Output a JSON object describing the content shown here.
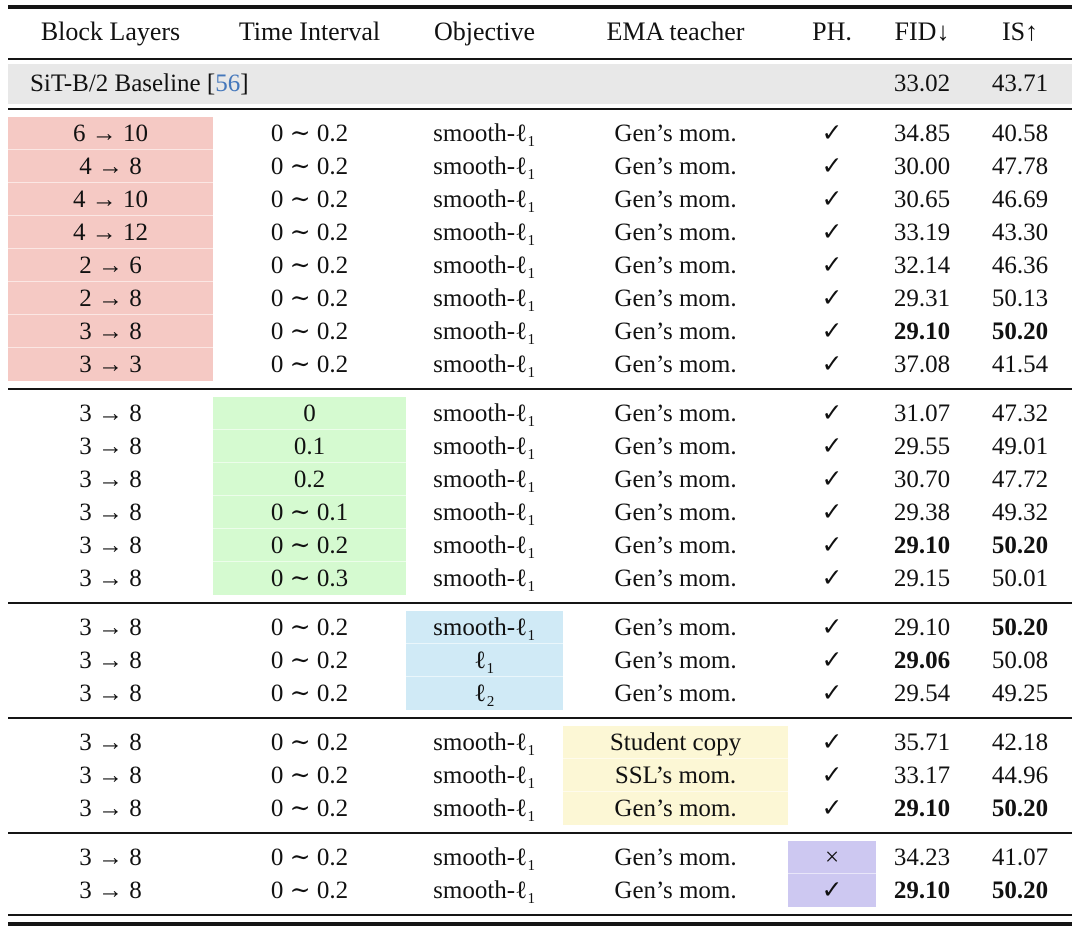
{
  "colors": {
    "red": "#f5c9c4",
    "green": "#d5fad0",
    "blue": "#d0eaf6",
    "yellow": "#fcf7d5",
    "purple": "#cdc8f1",
    "baseline_gray": "#e8e8e8",
    "citation_blue": "#4477bb"
  },
  "header": {
    "columns": [
      "Block Layers",
      "Time Interval",
      "Objective",
      "EMA teacher",
      "PH.",
      "FID↓",
      "IS↑"
    ]
  },
  "baseline": {
    "label": "SiT-B/2 Baseline",
    "cite_open": " [",
    "cite_num": "56",
    "cite_close": "]",
    "fid": "33.02",
    "is": "43.71"
  },
  "sections": [
    {
      "name": "block-layers-ablation",
      "highlight": "block_layers",
      "color": "red",
      "rows": [
        {
          "block_layers": "6 → 10",
          "time_interval": "0 ∼ 0.2",
          "objective": "smooth-ℓ₁",
          "ema": "Gen’s mom.",
          "ph": "✓",
          "fid": "34.85",
          "is": "40.58",
          "fid_bold": false,
          "is_bold": false
        },
        {
          "block_layers": "4 → 8",
          "time_interval": "0 ∼ 0.2",
          "objective": "smooth-ℓ₁",
          "ema": "Gen’s mom.",
          "ph": "✓",
          "fid": "30.00",
          "is": "47.78",
          "fid_bold": false,
          "is_bold": false
        },
        {
          "block_layers": "4 → 10",
          "time_interval": "0 ∼ 0.2",
          "objective": "smooth-ℓ₁",
          "ema": "Gen’s mom.",
          "ph": "✓",
          "fid": "30.65",
          "is": "46.69",
          "fid_bold": false,
          "is_bold": false
        },
        {
          "block_layers": "4 → 12",
          "time_interval": "0 ∼ 0.2",
          "objective": "smooth-ℓ₁",
          "ema": "Gen’s mom.",
          "ph": "✓",
          "fid": "33.19",
          "is": "43.30",
          "fid_bold": false,
          "is_bold": false
        },
        {
          "block_layers": "2 → 6",
          "time_interval": "0 ∼ 0.2",
          "objective": "smooth-ℓ₁",
          "ema": "Gen’s mom.",
          "ph": "✓",
          "fid": "32.14",
          "is": "46.36",
          "fid_bold": false,
          "is_bold": false
        },
        {
          "block_layers": "2 → 8",
          "time_interval": "0 ∼ 0.2",
          "objective": "smooth-ℓ₁",
          "ema": "Gen’s mom.",
          "ph": "✓",
          "fid": "29.31",
          "is": "50.13",
          "fid_bold": false,
          "is_bold": false
        },
        {
          "block_layers": "3 → 8",
          "time_interval": "0 ∼ 0.2",
          "objective": "smooth-ℓ₁",
          "ema": "Gen’s mom.",
          "ph": "✓",
          "fid": "29.10",
          "is": "50.20",
          "fid_bold": true,
          "is_bold": true
        },
        {
          "block_layers": "3 → 3",
          "time_interval": "0 ∼ 0.2",
          "objective": "smooth-ℓ₁",
          "ema": "Gen’s mom.",
          "ph": "✓",
          "fid": "37.08",
          "is": "41.54",
          "fid_bold": false,
          "is_bold": false
        }
      ]
    },
    {
      "name": "time-interval-ablation",
      "highlight": "time_interval",
      "color": "green",
      "rows": [
        {
          "block_layers": "3 → 8",
          "time_interval": "0",
          "objective": "smooth-ℓ₁",
          "ema": "Gen’s mom.",
          "ph": "✓",
          "fid": "31.07",
          "is": "47.32",
          "fid_bold": false,
          "is_bold": false
        },
        {
          "block_layers": "3 → 8",
          "time_interval": "0.1",
          "objective": "smooth-ℓ₁",
          "ema": "Gen’s mom.",
          "ph": "✓",
          "fid": "29.55",
          "is": "49.01",
          "fid_bold": false,
          "is_bold": false
        },
        {
          "block_layers": "3 → 8",
          "time_interval": "0.2",
          "objective": "smooth-ℓ₁",
          "ema": "Gen’s mom.",
          "ph": "✓",
          "fid": "30.70",
          "is": "47.72",
          "fid_bold": false,
          "is_bold": false
        },
        {
          "block_layers": "3 → 8",
          "time_interval": "0 ∼ 0.1",
          "objective": "smooth-ℓ₁",
          "ema": "Gen’s mom.",
          "ph": "✓",
          "fid": "29.38",
          "is": "49.32",
          "fid_bold": false,
          "is_bold": false
        },
        {
          "block_layers": "3 → 8",
          "time_interval": "0 ∼ 0.2",
          "objective": "smooth-ℓ₁",
          "ema": "Gen’s mom.",
          "ph": "✓",
          "fid": "29.10",
          "is": "50.20",
          "fid_bold": true,
          "is_bold": true
        },
        {
          "block_layers": "3 → 8",
          "time_interval": "0 ∼ 0.3",
          "objective": "smooth-ℓ₁",
          "ema": "Gen’s mom.",
          "ph": "✓",
          "fid": "29.15",
          "is": "50.01",
          "fid_bold": false,
          "is_bold": false
        }
      ]
    },
    {
      "name": "objective-ablation",
      "highlight": "objective",
      "color": "blue",
      "rows": [
        {
          "block_layers": "3 → 8",
          "time_interval": "0 ∼ 0.2",
          "objective": "smooth-ℓ₁",
          "ema": "Gen’s mom.",
          "ph": "✓",
          "fid": "29.10",
          "is": "50.20",
          "fid_bold": false,
          "is_bold": true
        },
        {
          "block_layers": "3 → 8",
          "time_interval": "0 ∼ 0.2",
          "objective": "ℓ₁",
          "ema": "Gen’s mom.",
          "ph": "✓",
          "fid": "29.06",
          "is": "50.08",
          "fid_bold": true,
          "is_bold": false
        },
        {
          "block_layers": "3 → 8",
          "time_interval": "0 ∼ 0.2",
          "objective": "ℓ₂",
          "ema": "Gen’s mom.",
          "ph": "✓",
          "fid": "29.54",
          "is": "49.25",
          "fid_bold": false,
          "is_bold": false
        }
      ]
    },
    {
      "name": "ema-teacher-ablation",
      "highlight": "ema",
      "color": "yellow",
      "rows": [
        {
          "block_layers": "3 → 8",
          "time_interval": "0 ∼ 0.2",
          "objective": "smooth-ℓ₁",
          "ema": "Student copy",
          "ph": "✓",
          "fid": "35.71",
          "is": "42.18",
          "fid_bold": false,
          "is_bold": false
        },
        {
          "block_layers": "3 → 8",
          "time_interval": "0 ∼ 0.2",
          "objective": "smooth-ℓ₁",
          "ema": "SSL’s mom.",
          "ph": "✓",
          "fid": "33.17",
          "is": "44.96",
          "fid_bold": false,
          "is_bold": false
        },
        {
          "block_layers": "3 → 8",
          "time_interval": "0 ∼ 0.2",
          "objective": "smooth-ℓ₁",
          "ema": "Gen’s mom.",
          "ph": "✓",
          "fid": "29.10",
          "is": "50.20",
          "fid_bold": true,
          "is_bold": true
        }
      ]
    },
    {
      "name": "ph-ablation",
      "highlight": "ph",
      "color": "purple",
      "rows": [
        {
          "block_layers": "3 → 8",
          "time_interval": "0 ∼ 0.2",
          "objective": "smooth-ℓ₁",
          "ema": "Gen’s mom.",
          "ph": "×",
          "fid": "34.23",
          "is": "41.07",
          "fid_bold": false,
          "is_bold": false
        },
        {
          "block_layers": "3 → 8",
          "time_interval": "0 ∼ 0.2",
          "objective": "smooth-ℓ₁",
          "ema": "Gen’s mom.",
          "ph": "✓",
          "fid": "29.10",
          "is": "50.20",
          "fid_bold": true,
          "is_bold": true
        }
      ]
    }
  ]
}
